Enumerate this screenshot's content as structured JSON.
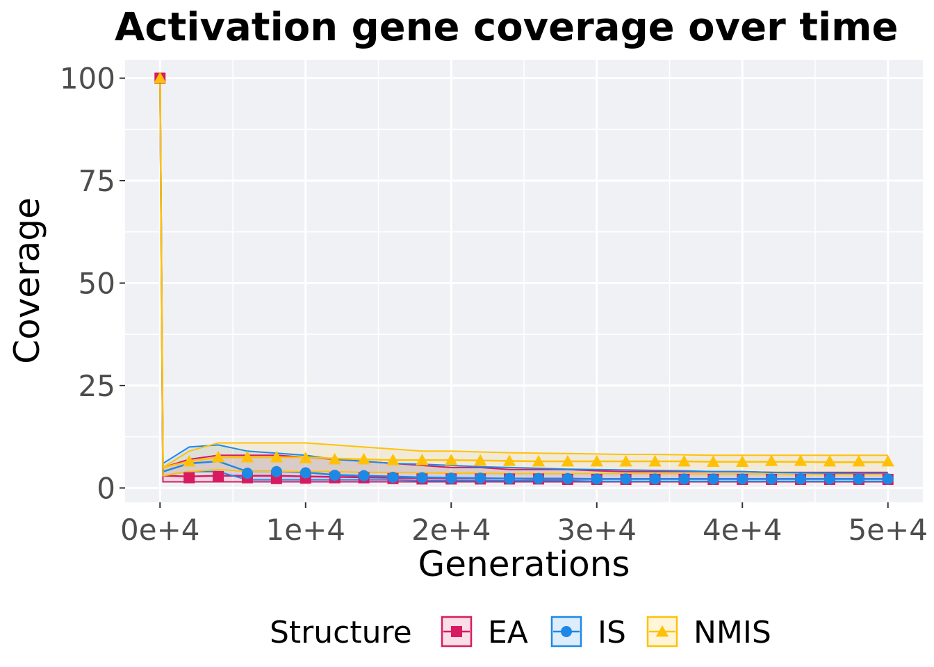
{
  "chart_data": {
    "type": "line",
    "title": "Activation gene coverage over time",
    "xlabel": "Generations",
    "ylabel": "Coverage",
    "xlim": [
      -2400,
      52400
    ],
    "ylim": [
      -3.5,
      104.5
    ],
    "x_ticks": [
      0,
      10000,
      20000,
      30000,
      40000,
      50000
    ],
    "x_tick_labels": [
      "0e+4",
      "1e+4",
      "2e+4",
      "3e+4",
      "4e+4",
      "5e+4"
    ],
    "y_ticks": [
      0,
      25,
      50,
      75,
      100
    ],
    "y_tick_labels": [
      "0",
      "25",
      "50",
      "75",
      "100"
    ],
    "grid": true,
    "legend": {
      "title": "Structure",
      "position": "bottom",
      "entries": [
        "EA",
        "IS",
        "NMIS"
      ]
    },
    "series": [
      {
        "name": "EA",
        "color": "#d81b60",
        "marker": "square",
        "x": [
          0,
          200,
          2000,
          4000,
          6000,
          8000,
          10000,
          12000,
          14000,
          16000,
          18000,
          20000,
          22000,
          24000,
          26000,
          28000,
          30000,
          32000,
          34000,
          36000,
          38000,
          40000,
          42000,
          44000,
          46000,
          48000,
          50000
        ],
        "median": [
          100,
          3,
          2.8,
          3,
          3,
          3,
          2.8,
          2.7,
          2.6,
          2.5,
          2.4,
          2.3,
          2.3,
          2.3,
          2.2,
          2.2,
          2.2,
          2.2,
          2.2,
          2.2,
          2.2,
          2.2,
          2.2,
          2.2,
          2.2,
          2.2,
          2.2
        ],
        "lower": [
          100,
          1.5,
          1.5,
          1.5,
          1.5,
          1.5,
          1.5,
          1.5,
          1.5,
          1.5,
          1.5,
          1.5,
          1.5,
          1.5,
          1.5,
          1.5,
          1.5,
          1.5,
          1.5,
          1.5,
          1.5,
          1.5,
          1.5,
          1.5,
          1.5,
          1.5,
          1.5
        ],
        "upper": [
          100,
          5,
          7,
          8,
          8,
          8,
          7.5,
          7,
          6.5,
          6,
          5.5,
          5,
          5,
          4.5,
          4.5,
          4.5,
          4.2,
          4,
          4,
          4,
          4,
          4,
          3.8,
          3.8,
          3.8,
          3.8,
          3.8
        ],
        "marker_x": [
          0,
          2000,
          4000,
          6000,
          8000,
          10000,
          12000,
          14000,
          16000,
          18000,
          20000,
          22000,
          24000,
          26000,
          28000,
          30000,
          32000,
          34000,
          36000,
          38000,
          40000,
          42000,
          44000,
          46000,
          48000,
          50000
        ],
        "marker_y": [
          100,
          2.5,
          2.8,
          2.5,
          2.3,
          2.4,
          2.5,
          2.5,
          2.3,
          2.2,
          2.2,
          2.2,
          2.2,
          2.2,
          2.1,
          2.1,
          2.1,
          2.1,
          2.1,
          2.1,
          2.1,
          2.1,
          2.1,
          2.1,
          2.1,
          2.1
        ]
      },
      {
        "name": "IS",
        "color": "#1e88e5",
        "marker": "circle",
        "x": [
          0,
          200,
          2000,
          4000,
          6000,
          8000,
          10000,
          12000,
          14000,
          16000,
          18000,
          20000,
          22000,
          24000,
          26000,
          28000,
          30000,
          32000,
          34000,
          36000,
          38000,
          40000,
          42000,
          44000,
          46000,
          48000,
          50000
        ],
        "median": [
          100,
          4,
          6,
          6.5,
          4,
          4,
          3.8,
          3.2,
          3,
          2.8,
          2.6,
          2.5,
          2.4,
          2.3,
          2.3,
          2.3,
          2.2,
          2.2,
          2.2,
          2.2,
          2.2,
          2.2,
          2.2,
          2.2,
          2.2,
          2.2,
          2.2
        ],
        "lower": [
          100,
          3,
          4,
          4,
          2,
          2,
          2,
          2,
          2,
          2,
          1.8,
          1.8,
          1.8,
          1.8,
          1.8,
          1.8,
          1.6,
          1.6,
          1.6,
          1.6,
          1.6,
          1.6,
          1.6,
          1.6,
          1.6,
          1.6,
          1.6
        ],
        "upper": [
          100,
          6,
          10,
          10.5,
          9,
          8.5,
          8,
          7,
          6.5,
          6,
          5.8,
          5.5,
          5.2,
          5,
          4.8,
          4.6,
          4.5,
          4.4,
          4.3,
          4.2,
          4,
          4,
          3.8,
          3.7,
          3.6,
          3.5,
          3.5
        ],
        "marker_x": [
          6000,
          8000,
          10000,
          12000,
          14000,
          16000,
          18000,
          20000,
          22000,
          24000,
          26000,
          28000,
          30000,
          32000,
          34000,
          36000,
          38000,
          40000,
          42000,
          44000,
          46000,
          48000,
          50000
        ],
        "marker_y": [
          3.6,
          4,
          3.7,
          3.1,
          3,
          2.6,
          2.5,
          2.4,
          2.4,
          2.3,
          2.3,
          2.3,
          2.2,
          2.2,
          2.2,
          2.2,
          2.2,
          2.2,
          2.2,
          2.2,
          2.2,
          2.2,
          2.2
        ]
      },
      {
        "name": "NMIS",
        "color": "#ffc107",
        "marker": "triangle",
        "x": [
          0,
          200,
          2000,
          4000,
          6000,
          8000,
          10000,
          12000,
          14000,
          16000,
          18000,
          20000,
          22000,
          24000,
          26000,
          28000,
          30000,
          32000,
          34000,
          36000,
          38000,
          40000,
          42000,
          44000,
          46000,
          48000,
          50000
        ],
        "median": [
          100,
          5,
          6.5,
          7.5,
          7.5,
          7.5,
          7.5,
          7.2,
          7,
          6.8,
          6.8,
          6.8,
          6.7,
          6.6,
          6.5,
          6.5,
          6.5,
          6.5,
          6.5,
          6.5,
          6.4,
          6.4,
          6.4,
          6.4,
          6.3,
          6.3,
          6.3
        ],
        "lower": [
          100,
          3,
          4,
          4.5,
          4,
          4,
          4,
          4,
          3.8,
          3.8,
          3.7,
          3.6,
          3.6,
          3.5,
          3.5,
          3.5,
          3.5,
          3.5,
          3.5,
          3.4,
          3.4,
          3.4,
          3.4,
          3.3,
          3.3,
          3.3,
          3.3
        ],
        "upper": [
          100,
          5,
          9,
          11,
          11,
          11,
          11,
          10.5,
          10,
          9.5,
          9,
          9,
          8.8,
          8.6,
          8.5,
          8.4,
          8.3,
          8.2,
          8.2,
          8.1,
          8,
          8,
          8,
          8,
          8,
          8,
          8
        ],
        "marker_x": [
          0,
          2000,
          4000,
          6000,
          8000,
          10000,
          12000,
          14000,
          16000,
          18000,
          20000,
          22000,
          24000,
          26000,
          28000,
          30000,
          32000,
          34000,
          36000,
          38000,
          40000,
          42000,
          44000,
          46000,
          48000,
          50000
        ],
        "marker_y": [
          100,
          6.5,
          7.5,
          7.5,
          7.5,
          7.3,
          7,
          7,
          6.8,
          6.8,
          6.8,
          6.7,
          6.6,
          6.5,
          6.5,
          6.5,
          6.5,
          6.5,
          6.5,
          6.4,
          6.4,
          6.6,
          6.6,
          6.5,
          6.5,
          6.5
        ]
      }
    ]
  }
}
